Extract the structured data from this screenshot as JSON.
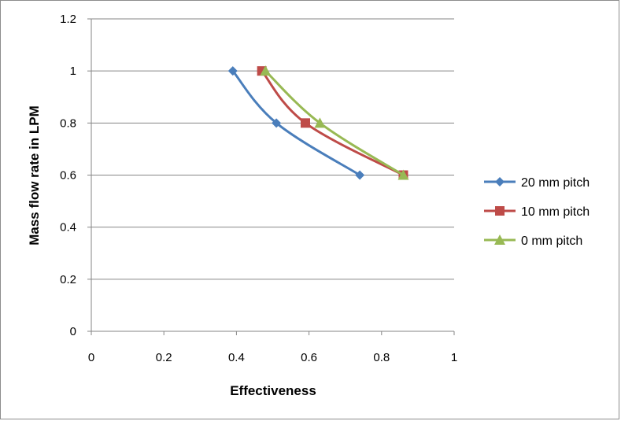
{
  "chart_data": {
    "type": "line",
    "title": "",
    "xlabel": "Effectiveness",
    "ylabel": "Mass flow rate in LPM",
    "xlim": [
      0,
      1
    ],
    "ylim": [
      0,
      1.2
    ],
    "xticks": [
      0,
      0.2,
      0.4,
      0.6,
      0.8,
      1
    ],
    "yticks": [
      0,
      0.2,
      0.4,
      0.6,
      0.8,
      1,
      1.2
    ],
    "xtick_labels": [
      "0",
      "0.2",
      "0.4",
      "0.6",
      "0.8",
      "1"
    ],
    "ytick_labels": [
      "0",
      "0.2",
      "0.4",
      "0.6",
      "0.8",
      "1",
      "1.2"
    ],
    "grid": "horizontal",
    "legend_position": "right",
    "series": [
      {
        "name": "20 mm pitch",
        "color": "#4a7ebb",
        "marker": "diamond",
        "points": [
          [
            0.39,
            1.0
          ],
          [
            0.51,
            0.8
          ],
          [
            0.74,
            0.6
          ]
        ]
      },
      {
        "name": "10 mm pitch",
        "color": "#be4b48",
        "marker": "square",
        "points": [
          [
            0.47,
            1.0
          ],
          [
            0.59,
            0.8
          ],
          [
            0.86,
            0.6
          ]
        ]
      },
      {
        "name": "0 mm pitch",
        "color": "#98b954",
        "marker": "triangle",
        "points": [
          [
            0.48,
            1.0
          ],
          [
            0.63,
            0.8
          ],
          [
            0.86,
            0.6
          ]
        ]
      }
    ]
  }
}
